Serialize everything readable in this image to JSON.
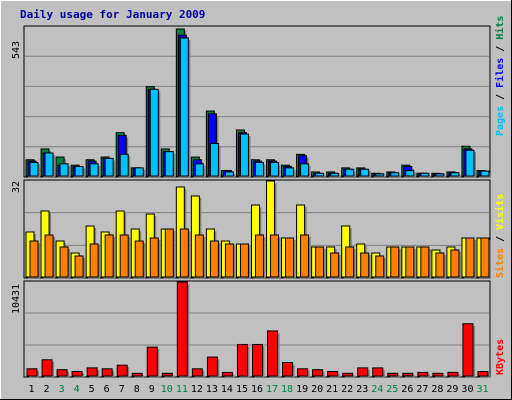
{
  "title": "Daily usage for January 2009",
  "colors": {
    "background": "#c0c0c0",
    "panel": "#c0c0c0",
    "grid": "#808080",
    "hits": "#008040",
    "files": "#0000ff",
    "pages": "#00c0ff",
    "visits": "#ffff00",
    "sites": "#ff8000",
    "kbytes": "#ff0000",
    "title_text": "#0000a0",
    "weekend_label": "#008040",
    "weekday_label": "#000000"
  },
  "chart_data": [
    {
      "type": "bar",
      "panel": "top",
      "max_label": "543",
      "ylim": [
        0,
        543
      ],
      "legend": {
        "pages": "Pages",
        "sep1": " / ",
        "files": "Files",
        "sep2": " / ",
        "hits": "Hits"
      },
      "categories": [
        "1",
        "2",
        "3",
        "4",
        "5",
        "6",
        "7",
        "8",
        "9",
        "10",
        "11",
        "12",
        "13",
        "14",
        "15",
        "16",
        "17",
        "18",
        "19",
        "20",
        "21",
        "22",
        "23",
        "24",
        "25",
        "26",
        "27",
        "28",
        "29",
        "30",
        "31"
      ],
      "series": [
        {
          "name": "Hits",
          "values": [
            60,
            100,
            70,
            40,
            60,
            70,
            160,
            30,
            330,
            100,
            543,
            70,
            240,
            20,
            170,
            60,
            60,
            40,
            80,
            15,
            15,
            30,
            30,
            10,
            15,
            40,
            10,
            10,
            15,
            110,
            20
          ]
        },
        {
          "name": "Files",
          "values": [
            55,
            85,
            40,
            35,
            55,
            65,
            150,
            30,
            320,
            90,
            520,
            60,
            230,
            20,
            160,
            55,
            55,
            35,
            75,
            10,
            10,
            25,
            25,
            8,
            12,
            35,
            10,
            8,
            12,
            100,
            18
          ]
        },
        {
          "name": "Pages",
          "values": [
            50,
            85,
            45,
            35,
            45,
            65,
            80,
            30,
            320,
            90,
            510,
            45,
            120,
            15,
            155,
            50,
            50,
            30,
            45,
            10,
            10,
            25,
            25,
            8,
            12,
            20,
            10,
            8,
            12,
            95,
            18
          ]
        }
      ]
    },
    {
      "type": "bar",
      "panel": "middle",
      "max_label": "32",
      "ylim": [
        0,
        32
      ],
      "legend": {
        "sites": "Sites",
        "sep": " / ",
        "visits": "Visits"
      },
      "categories": [
        "1",
        "2",
        "3",
        "4",
        "5",
        "6",
        "7",
        "8",
        "9",
        "10",
        "11",
        "12",
        "13",
        "14",
        "15",
        "16",
        "17",
        "18",
        "19",
        "20",
        "21",
        "22",
        "23",
        "24",
        "25",
        "26",
        "27",
        "28",
        "29",
        "30",
        "31"
      ],
      "series": [
        {
          "name": "Visits",
          "values": [
            15,
            22,
            12,
            8,
            17,
            15,
            22,
            16,
            21,
            16,
            30,
            27,
            16,
            12,
            11,
            24,
            32,
            13,
            24,
            10,
            10,
            17,
            11,
            8,
            10,
            10,
            10,
            9,
            10,
            13,
            13
          ]
        },
        {
          "name": "Sites",
          "values": [
            12,
            14,
            10,
            7,
            11,
            14,
            14,
            12,
            13,
            16,
            16,
            14,
            12,
            11,
            11,
            14,
            14,
            13,
            14,
            10,
            8,
            10,
            8,
            7,
            10,
            10,
            10,
            8,
            9,
            13,
            13
          ]
        }
      ]
    },
    {
      "type": "bar",
      "panel": "bottom",
      "max_label": "10431",
      "ylim": [
        0,
        10431
      ],
      "legend": {
        "kbytes": "KBytes"
      },
      "categories": [
        "1",
        "2",
        "3",
        "4",
        "5",
        "6",
        "7",
        "8",
        "9",
        "10",
        "11",
        "12",
        "13",
        "14",
        "15",
        "16",
        "17",
        "18",
        "19",
        "20",
        "21",
        "22",
        "23",
        "24",
        "25",
        "26",
        "27",
        "28",
        "29",
        "30",
        "31"
      ],
      "series": [
        {
          "name": "KBytes",
          "values": [
            800,
            1800,
            700,
            500,
            900,
            800,
            1200,
            300,
            3200,
            300,
            10431,
            800,
            2100,
            400,
            3500,
            3500,
            5000,
            1500,
            800,
            700,
            500,
            300,
            900,
            900,
            300,
            300,
            400,
            300,
            400,
            5800,
            500
          ]
        }
      ]
    }
  ],
  "weekend_days": [
    3,
    4,
    10,
    11,
    17,
    18,
    24,
    25,
    31
  ]
}
